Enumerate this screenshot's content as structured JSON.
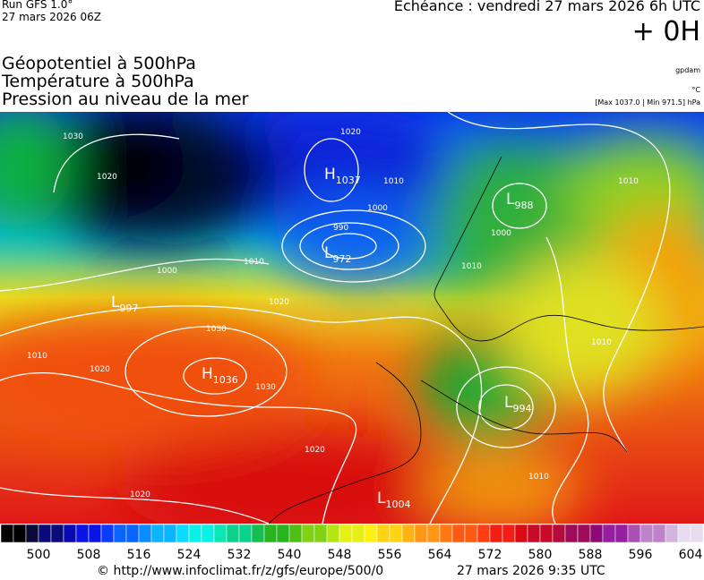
{
  "header": {
    "run": "Run GFS 1.0°",
    "run_date": "27 mars 2026 06Z",
    "forecast": "Echéance : vendredi 27 mars 2026 6h UTC",
    "offset": "+ 0H"
  },
  "titles": [
    "Géopotentiel à 500hPa",
    "Température à 500hPa",
    "Pression au niveau de la mer"
  ],
  "units": {
    "geopotential": "gpdam",
    "temperature": "°C",
    "pressure": "[Max 1037.0 | Min 971.5] hPa"
  },
  "centers": [
    {
      "type": "H",
      "value": 1037
    },
    {
      "type": "L",
      "value": 972
    },
    {
      "type": "L",
      "value": 988
    },
    {
      "type": "L",
      "value": 997
    },
    {
      "type": "H",
      "value": 1036
    },
    {
      "type": "L",
      "value": 994
    },
    {
      "type": "L",
      "value": 1004
    }
  ],
  "isobar_labels": [
    1030,
    1020,
    1020,
    1010,
    1000,
    990,
    1010,
    1000,
    1010,
    1020,
    1010,
    1030,
    1020,
    1030,
    1020,
    1020,
    1010,
    1010,
    1000,
    1010
  ],
  "legend": {
    "ticks": [
      500,
      508,
      516,
      524,
      532,
      540,
      548,
      556,
      564,
      572,
      580,
      588,
      596,
      604
    ]
  },
  "footer": {
    "source": "© http://www.infoclimat.fr/z/gfs/europe/500/0",
    "generated": "27 mars 2026  9:35 UTC"
  }
}
